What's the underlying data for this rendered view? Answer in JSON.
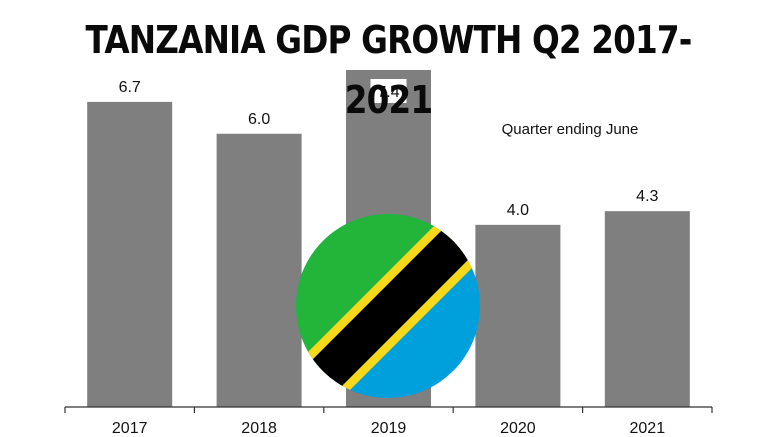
{
  "title": "TANZANIA GDP GROWTH Q2 2017-2021",
  "annotation": "Quarter ending June",
  "flag_colors": {
    "green": "#22b53a",
    "black": "#000000",
    "yellow": "#f8d81a",
    "blue": "#00a0dc"
  },
  "chart_data": {
    "type": "bar",
    "categories": [
      "2017",
      "2018",
      "2019",
      "2020",
      "2021"
    ],
    "values": [
      6.7,
      6.0,
      7.4,
      4.0,
      4.3
    ],
    "data_labels": [
      "6.7",
      "6.0",
      "7.4",
      "4.0",
      "4.3"
    ],
    "bar_color": "#7f7f7f",
    "xlabel": "",
    "ylabel": "",
    "ylim": [
      0,
      7.4
    ],
    "grid": false,
    "legend": "none",
    "annotations": [
      "Quarter ending June"
    ]
  }
}
